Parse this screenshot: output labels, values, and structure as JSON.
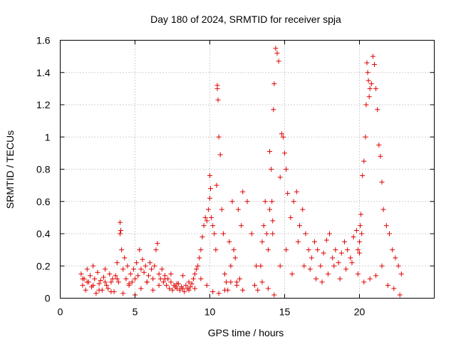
{
  "chart_data": {
    "type": "scatter",
    "title": "Day 180 of 2024, SRMTID for receiver spja",
    "xlabel": "GPS time / hours",
    "ylabel": "SRMTID / TECUs",
    "xlim": [
      0,
      25
    ],
    "ylim": [
      0,
      1.6
    ],
    "xticks": [
      "0",
      "5",
      "10",
      "15",
      "20"
    ],
    "yticks": [
      "0",
      "0.2",
      "0.4",
      "0.6",
      "0.8",
      "1",
      "1.2",
      "1.4",
      "1.6"
    ],
    "xtick_values": [
      0,
      5,
      10,
      15,
      20
    ],
    "ytick_values": [
      0,
      0.2,
      0.4,
      0.6,
      0.8,
      1.0,
      1.2,
      1.4,
      1.6
    ],
    "grid": true,
    "marker": "+",
    "color": "#e00000",
    "series": [
      {
        "name": "SRMTID",
        "x": [
          1.4,
          1.5,
          1.6,
          1.7,
          1.8,
          1.9,
          2.0,
          2.1,
          2.2,
          2.3,
          2.4,
          2.5,
          2.6,
          2.7,
          2.8,
          2.9,
          3.0,
          3.1,
          3.2,
          3.3,
          3.4,
          3.5,
          3.6,
          3.7,
          3.8,
          3.9,
          4.0,
          4.0,
          4.05,
          4.1,
          4.2,
          4.3,
          4.4,
          4.5,
          4.6,
          4.7,
          4.8,
          4.9,
          5.0,
          5.1,
          5.2,
          5.3,
          5.4,
          5.5,
          5.6,
          5.7,
          5.8,
          5.9,
          6.0,
          6.1,
          6.2,
          6.3,
          6.4,
          6.5,
          6.6,
          6.7,
          6.8,
          6.9,
          7.0,
          7.1,
          7.2,
          7.3,
          7.4,
          7.5,
          7.6,
          7.7,
          7.8,
          7.9,
          8.0,
          8.1,
          8.2,
          8.3,
          8.4,
          8.5,
          8.6,
          8.7,
          8.8,
          8.9,
          9.0,
          9.1,
          9.2,
          9.3,
          9.4,
          9.5,
          9.6,
          9.7,
          9.8,
          9.9,
          10.0,
          10.0,
          10.05,
          10.1,
          10.2,
          10.3,
          10.4,
          10.45,
          10.5,
          10.5,
          10.55,
          10.6,
          10.7,
          10.8,
          10.9,
          11.0,
          11.1,
          11.2,
          11.3,
          11.4,
          11.5,
          11.6,
          11.7,
          11.8,
          11.9,
          12.0,
          12.1,
          12.2,
          12.5,
          12.8,
          13.0,
          13.2,
          13.4,
          13.5,
          13.6,
          13.7,
          13.8,
          13.9,
          14.0,
          14.0,
          14.1,
          14.15,
          14.2,
          14.2,
          14.25,
          14.3,
          14.4,
          14.5,
          14.6,
          14.7,
          14.8,
          14.9,
          15.0,
          15.1,
          15.2,
          15.4,
          15.6,
          15.8,
          16.0,
          16.2,
          16.4,
          16.6,
          16.8,
          17.0,
          17.2,
          17.4,
          17.6,
          17.8,
          18.0,
          18.2,
          18.4,
          18.6,
          18.8,
          19.0,
          19.2,
          19.4,
          19.6,
          19.8,
          19.9,
          20.0,
          20.0,
          20.05,
          20.1,
          20.15,
          20.2,
          20.3,
          20.4,
          20.45,
          20.5,
          20.55,
          20.6,
          20.65,
          20.7,
          20.8,
          20.9,
          21.0,
          21.1,
          21.2,
          21.3,
          21.4,
          21.5,
          21.6,
          21.8,
          22.0,
          22.2,
          22.4,
          22.6,
          22.8,
          1.5,
          1.8,
          2.2,
          2.6,
          3.0,
          3.4,
          3.8,
          4.2,
          4.6,
          5.0,
          5.4,
          5.8,
          6.2,
          6.6,
          7.0,
          7.4,
          7.8,
          8.2,
          8.6,
          9.0,
          9.4,
          9.8,
          10.2,
          10.6,
          11.0,
          11.4,
          11.8,
          12.2,
          13.1,
          13.5,
          13.9,
          14.3,
          14.7,
          15.1,
          15.5,
          15.9,
          16.3,
          16.7,
          17.1,
          17.5,
          17.9,
          18.3,
          18.7,
          19.1,
          19.5,
          19.9,
          20.3,
          20.7,
          21.1,
          21.5,
          21.9,
          22.3,
          22.7
        ],
        "y": [
          0.15,
          0.08,
          0.12,
          0.05,
          0.18,
          0.1,
          0.14,
          0.07,
          0.2,
          0.12,
          0.03,
          0.16,
          0.09,
          0.11,
          0.05,
          0.13,
          0.18,
          0.08,
          0.06,
          0.15,
          0.1,
          0.12,
          0.04,
          0.14,
          0.22,
          0.1,
          0.47,
          0.4,
          0.42,
          0.3,
          0.18,
          0.25,
          0.12,
          0.2,
          0.08,
          0.15,
          0.1,
          0.18,
          0.12,
          0.22,
          0.14,
          0.3,
          0.18,
          0.24,
          0.16,
          0.2,
          0.1,
          0.14,
          0.22,
          0.18,
          0.12,
          0.2,
          0.3,
          0.34,
          0.15,
          0.12,
          0.18,
          0.1,
          0.14,
          0.08,
          0.12,
          0.06,
          0.1,
          0.05,
          0.08,
          0.07,
          0.06,
          0.09,
          0.05,
          0.07,
          0.06,
          0.04,
          0.08,
          0.06,
          0.05,
          0.07,
          0.09,
          0.12,
          0.15,
          0.18,
          0.2,
          0.25,
          0.3,
          0.38,
          0.45,
          0.5,
          0.48,
          0.55,
          0.76,
          0.62,
          0.68,
          0.5,
          0.45,
          0.4,
          0.3,
          0.7,
          1.32,
          1.3,
          1.23,
          1.0,
          0.89,
          0.55,
          0.4,
          0.15,
          0.1,
          0.05,
          0.35,
          0.2,
          0.6,
          0.3,
          0.25,
          0.1,
          0.55,
          0.12,
          0.45,
          0.66,
          0.6,
          0.4,
          0.08,
          0.05,
          0.2,
          0.35,
          0.45,
          0.6,
          0.4,
          0.3,
          0.55,
          0.91,
          0.8,
          0.6,
          0.48,
          0.4,
          1.17,
          1.33,
          1.55,
          1.52,
          1.47,
          0.75,
          1.02,
          1.0,
          0.9,
          0.8,
          0.65,
          0.5,
          0.6,
          0.66,
          0.45,
          0.55,
          0.4,
          0.3,
          0.25,
          0.35,
          0.3,
          0.2,
          0.28,
          0.36,
          0.4,
          0.25,
          0.3,
          0.22,
          0.28,
          0.35,
          0.3,
          0.25,
          0.38,
          0.42,
          0.3,
          0.35,
          0.28,
          0.45,
          0.52,
          0.4,
          0.76,
          0.85,
          1.0,
          1.2,
          1.46,
          1.4,
          1.35,
          1.25,
          1.3,
          1.33,
          1.5,
          1.45,
          1.3,
          1.17,
          0.95,
          0.88,
          0.72,
          0.55,
          0.45,
          0.4,
          0.3,
          0.25,
          0.2,
          0.15,
          0.12,
          0.1,
          0.08,
          0.05,
          0.1,
          0.04,
          0.12,
          0.03,
          0.09,
          0.02,
          0.06,
          0.1,
          0.05,
          0.08,
          0.12,
          0.15,
          0.09,
          0.14,
          0.1,
          0.06,
          0.12,
          0.08,
          0.04,
          0.03,
          0.05,
          0.1,
          0.08,
          0.05,
          0.2,
          0.1,
          0.06,
          0.02,
          0.2,
          0.3,
          0.15,
          0.35,
          0.2,
          0.18,
          0.12,
          0.1,
          0.15,
          0.2,
          0.12,
          0.18,
          0.22,
          0.15,
          0.1,
          0.12,
          0.14,
          0.2,
          0.08,
          0.06,
          0.02
        ]
      }
    ]
  }
}
